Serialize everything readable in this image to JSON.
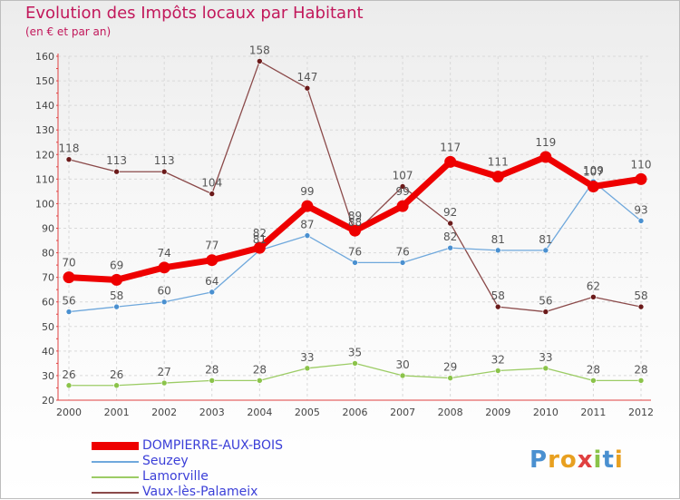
{
  "title": "Evolution des Impôts locaux par Habitant",
  "subtitle": "(en € et par an)",
  "logo_text": "Proxiti",
  "chart_data": {
    "type": "line",
    "title": "Evolution des Impôts locaux par Habitant",
    "ylabel": "(en € et par an)",
    "xlabel": "",
    "categories": [
      "2000",
      "2001",
      "2002",
      "2003",
      "2004",
      "2005",
      "2006",
      "2007",
      "2008",
      "2009",
      "2010",
      "2011",
      "2012"
    ],
    "ylim": [
      20,
      160
    ],
    "yticks": [
      20,
      30,
      40,
      50,
      60,
      70,
      80,
      90,
      100,
      110,
      120,
      130,
      140,
      150,
      160
    ],
    "grid": true,
    "legend_position": "bottom-left",
    "series": [
      {
        "name": "DOMPIERRE-AUX-BOIS",
        "color": "#ee0000",
        "values": [
          70,
          69,
          74,
          77,
          82,
          99,
          89,
          99,
          117,
          111,
          119,
          107,
          110
        ]
      },
      {
        "name": "Seuzey",
        "color": "#6fa8dc",
        "values": [
          56,
          58,
          60,
          64,
          81,
          87,
          76,
          76,
          82,
          81,
          81,
          109,
          93
        ]
      },
      {
        "name": "Lamorville",
        "color": "#9ccc65",
        "values": [
          26,
          26,
          27,
          28,
          28,
          33,
          35,
          30,
          29,
          32,
          33,
          28,
          28
        ]
      },
      {
        "name": "Vaux-lès-Palameix",
        "color": "#8b4a4a",
        "values": [
          118,
          113,
          113,
          104,
          158,
          147,
          88,
          107,
          92,
          58,
          56,
          62,
          58
        ]
      }
    ]
  }
}
